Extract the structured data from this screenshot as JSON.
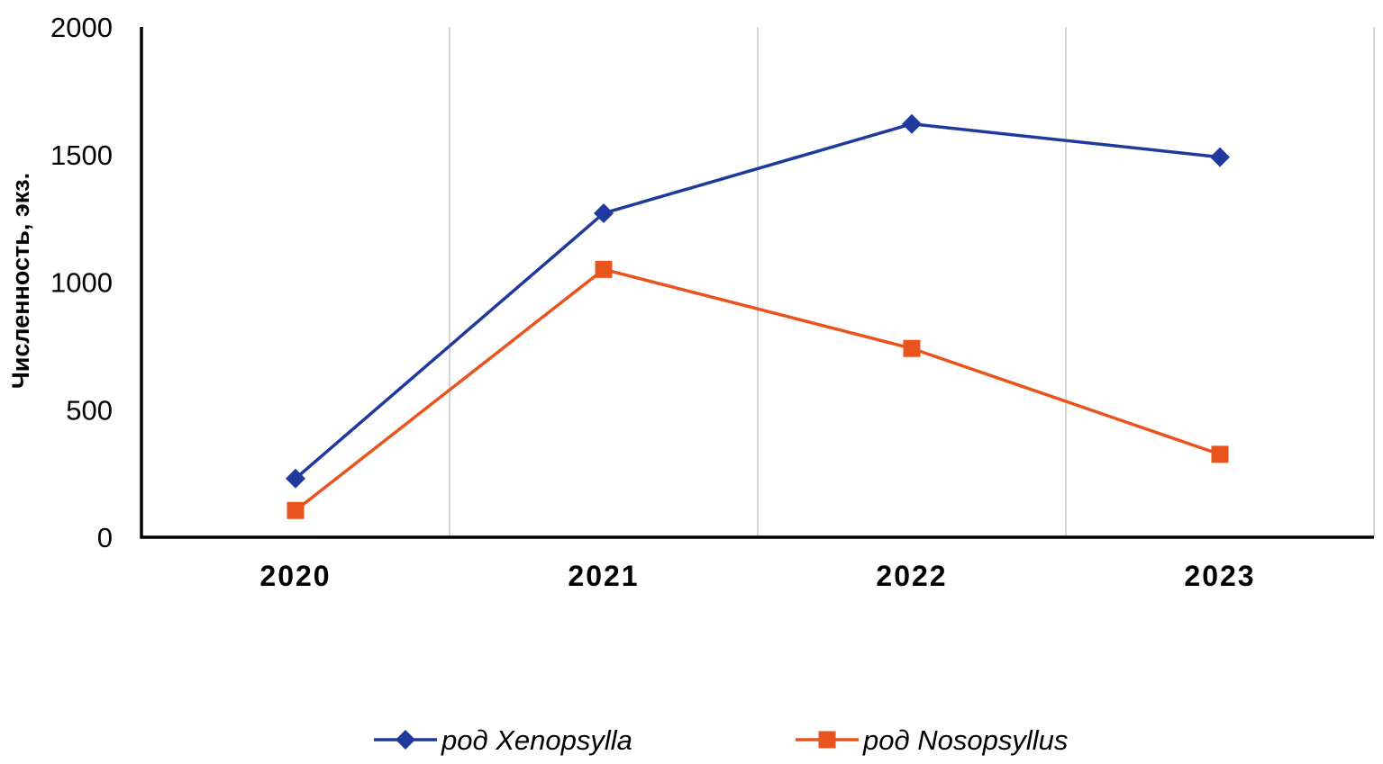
{
  "chart_data": {
    "type": "line",
    "title": "",
    "xlabel": "",
    "ylabel": "Численность, экз.",
    "categories": [
      "2020",
      "2021",
      "2022",
      "2023"
    ],
    "ylim": [
      0,
      2000
    ],
    "yticks": [
      "0",
      "500",
      "1000",
      "1500",
      "2000"
    ],
    "grid": "vertical",
    "legend_position": "bottom",
    "series": [
      {
        "name": "род Xenopsylla",
        "values": [
          230,
          1270,
          1620,
          1490
        ],
        "color": "#1f3a9c",
        "marker": "diamond"
      },
      {
        "name": "род Nosopsyllus",
        "values": [
          105,
          1050,
          740,
          325
        ],
        "color": "#e8541c",
        "marker": "square"
      }
    ]
  }
}
